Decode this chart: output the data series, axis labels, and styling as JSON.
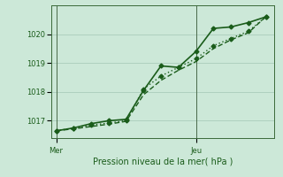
{
  "bg_color": "#cce8d8",
  "grid_color": "#aaccbb",
  "line_color": "#1a5c1a",
  "ylabel": "Pression niveau de la mer( hPa )",
  "xtick_labels": [
    "Mer",
    "Jeu"
  ],
  "xtick_positions": [
    0,
    8
  ],
  "ylim": [
    1016.4,
    1021.0
  ],
  "yticks": [
    1017,
    1018,
    1019,
    1020
  ],
  "series1_x": [
    0,
    1,
    2,
    3,
    4,
    5,
    6,
    7,
    8,
    9,
    10,
    11,
    12
  ],
  "series1_y": [
    1016.65,
    1016.75,
    1016.9,
    1017.0,
    1017.05,
    1018.05,
    1018.9,
    1018.85,
    1019.4,
    1020.2,
    1020.25,
    1020.4,
    1020.6
  ],
  "series2_x": [
    0,
    1,
    2,
    3,
    4,
    5,
    6,
    7,
    8,
    9,
    10,
    11,
    12
  ],
  "series2_y": [
    1016.65,
    1016.75,
    1016.85,
    1016.92,
    1017.0,
    1018.1,
    1018.55,
    1018.85,
    1019.15,
    1019.6,
    1019.85,
    1020.1,
    1020.6
  ],
  "series3_x": [
    0,
    1,
    2,
    3,
    4,
    5,
    6,
    7,
    8,
    9,
    10,
    11,
    12
  ],
  "series3_y": [
    1016.65,
    1016.72,
    1016.8,
    1016.88,
    1016.98,
    1017.9,
    1018.4,
    1018.75,
    1019.05,
    1019.5,
    1019.8,
    1020.05,
    1020.6
  ],
  "vline_x": [
    0,
    8
  ],
  "xlim": [
    -0.3,
    12.5
  ],
  "marker": "D",
  "markersize": 2.5,
  "linewidth1": 1.2,
  "linewidth2": 1.0,
  "linewidth3": 1.0,
  "tick_fontsize": 6,
  "xlabel_fontsize": 7
}
